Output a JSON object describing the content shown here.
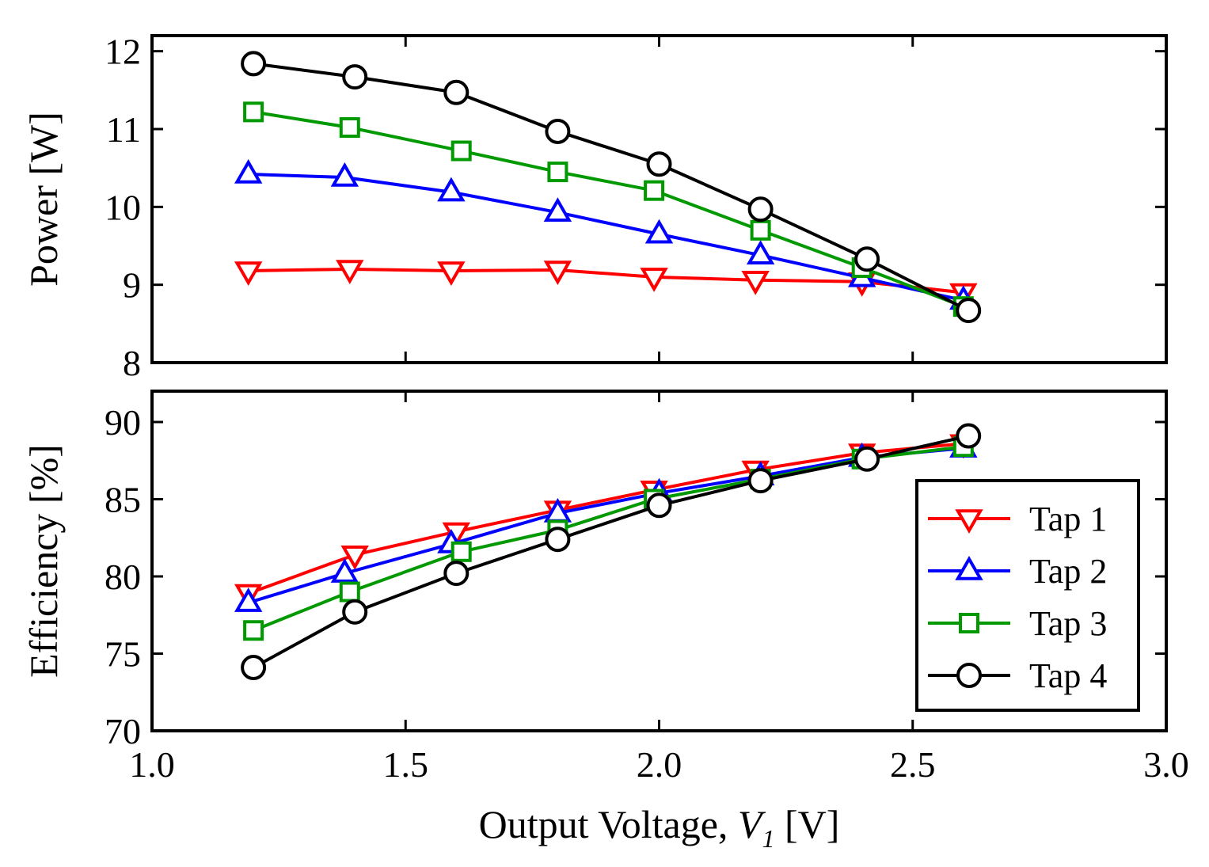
{
  "chart_data": [
    {
      "type": "line",
      "panel": "top",
      "ylabel": "Power [W]",
      "xlim": [
        1.0,
        3.0
      ],
      "ylim": [
        8,
        12.2
      ],
      "yticks": [
        8,
        9,
        10,
        11,
        12
      ],
      "xticks": [
        1.0,
        1.5,
        2.0,
        2.5,
        3.0
      ],
      "grid": false,
      "series": [
        {
          "name": "Tap 1",
          "marker": "triangle-down",
          "color": "#ff0000",
          "x": [
            1.19,
            1.39,
            1.59,
            1.8,
            1.99,
            2.19,
            2.4,
            2.6
          ],
          "y": [
            9.18,
            9.2,
            9.18,
            9.19,
            9.1,
            9.06,
            9.04,
            8.9
          ]
        },
        {
          "name": "Tap 2",
          "marker": "triangle-up",
          "color": "#0000ff",
          "x": [
            1.19,
            1.38,
            1.59,
            1.8,
            2.0,
            2.2,
            2.4,
            2.6
          ],
          "y": [
            10.42,
            10.38,
            10.19,
            9.93,
            9.65,
            9.38,
            9.09,
            8.8
          ]
        },
        {
          "name": "Tap 3",
          "marker": "square",
          "color": "#009900",
          "x": [
            1.2,
            1.39,
            1.61,
            1.8,
            1.99,
            2.2,
            2.4,
            2.6
          ],
          "y": [
            11.22,
            11.02,
            10.72,
            10.45,
            10.21,
            9.7,
            9.22,
            8.72
          ]
        },
        {
          "name": "Tap 4",
          "marker": "circle",
          "color": "#000000",
          "x": [
            1.2,
            1.4,
            1.6,
            1.8,
            2.0,
            2.2,
            2.41,
            2.61
          ],
          "y": [
            11.84,
            11.67,
            11.47,
            10.97,
            10.55,
            9.97,
            9.33,
            8.67
          ]
        }
      ]
    },
    {
      "type": "line",
      "panel": "bottom",
      "ylabel": "Efficiency [%]",
      "xlabel_prefix": "Output Voltage, ",
      "xlabel_var": "V",
      "xlabel_sub": "1",
      "xlabel_suffix": " [V]",
      "xlim": [
        1.0,
        3.0
      ],
      "ylim": [
        70,
        92
      ],
      "yticks": [
        70,
        75,
        80,
        85,
        90
      ],
      "xticks": [
        1.0,
        1.5,
        2.0,
        2.5,
        3.0
      ],
      "xticklabels": [
        "1.0",
        "1.5",
        "2.0",
        "2.5",
        "3.0"
      ],
      "grid": false,
      "legend": "lower-right",
      "series": [
        {
          "name": "Tap 1",
          "marker": "triangle-down",
          "color": "#ff0000",
          "x": [
            1.19,
            1.4,
            1.6,
            1.8,
            1.99,
            2.19,
            2.4,
            2.6
          ],
          "y": [
            78.9,
            81.4,
            82.9,
            84.3,
            85.6,
            86.9,
            88.0,
            88.6
          ]
        },
        {
          "name": "Tap 2",
          "marker": "triangle-up",
          "color": "#0000ff",
          "x": [
            1.19,
            1.38,
            1.59,
            1.8,
            2.0,
            2.2,
            2.4,
            2.6
          ],
          "y": [
            78.3,
            80.2,
            82.1,
            84.1,
            85.4,
            86.5,
            87.7,
            88.3
          ]
        },
        {
          "name": "Tap 3",
          "marker": "square",
          "color": "#009900",
          "x": [
            1.2,
            1.39,
            1.61,
            1.8,
            1.99,
            2.2,
            2.4,
            2.6
          ],
          "y": [
            76.5,
            79.0,
            81.6,
            83.0,
            85.0,
            86.3,
            87.6,
            88.4
          ]
        },
        {
          "name": "Tap 4",
          "marker": "circle",
          "color": "#000000",
          "x": [
            1.2,
            1.4,
            1.6,
            1.8,
            2.0,
            2.2,
            2.41,
            2.61
          ],
          "y": [
            74.1,
            77.7,
            80.2,
            82.4,
            84.6,
            86.2,
            87.6,
            89.1
          ]
        }
      ]
    }
  ]
}
